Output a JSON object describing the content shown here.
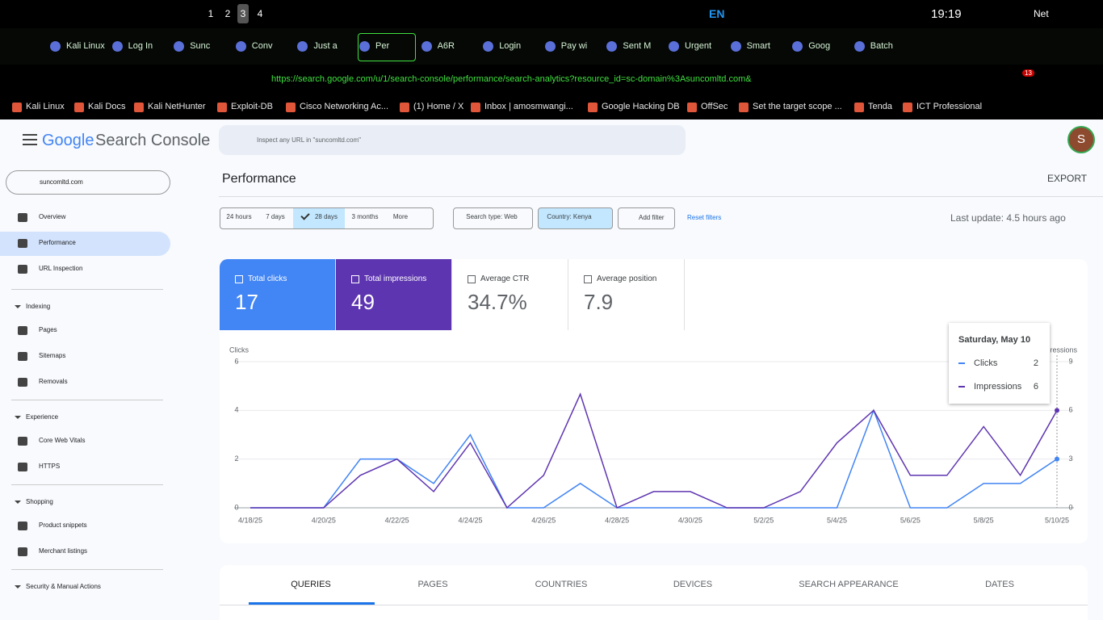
{
  "taskbar": {
    "workspaces": [
      "1",
      "2",
      "3",
      "4"
    ],
    "lang": "EN",
    "time": "19:19",
    "net": "Net"
  },
  "tabs": [
    "Kali Linux",
    "Log In",
    "Sunc",
    "Conv",
    "Just a",
    "Per",
    "A6R",
    "Login",
    "Pay wi",
    "Sent M",
    "Urgent",
    "Smart",
    "Goog",
    "Batch"
  ],
  "url": "https://search.google.com/u/1/search-console/performance/search-analytics?resource_id=sc-domain%3Asuncomltd.com&",
  "extension_badge": "13",
  "bookmarks": [
    "Kali Linux",
    "Kali Docs",
    "Kali NetHunter",
    "Exploit-DB",
    "Cisco Networking Ac...",
    "(1) Home / X",
    "Inbox | amosmwangi...",
    "Google Hacking DB",
    "OffSec",
    "Set the target scope ...",
    "Tenda",
    "ICT Professional"
  ],
  "app": {
    "logo_google": "Google",
    "logo_product": "Search Console",
    "search_placeholder": "Inspect any URL in \"suncomltd.com\"",
    "avatar": "S",
    "property": "suncomltd.com"
  },
  "nav": {
    "top": [
      "Overview",
      "Performance",
      "URL Inspection"
    ],
    "sections": [
      {
        "title": "Indexing",
        "items": [
          "Pages",
          "Sitemaps",
          "Removals"
        ]
      },
      {
        "title": "Experience",
        "items": [
          "Core Web Vitals",
          "HTTPS"
        ]
      },
      {
        "title": "Shopping",
        "items": [
          "Product snippets",
          "Merchant listings"
        ]
      },
      {
        "title": "Security & Manual Actions",
        "items": []
      }
    ]
  },
  "page": {
    "title": "Performance",
    "export": "EXPORT",
    "date_ranges": [
      "24 hours",
      "7 days",
      "28 days",
      "3 months",
      "More"
    ],
    "filters": [
      "Search type: Web",
      "Country: Kenya"
    ],
    "add_filter": "Add filter",
    "reset": "Reset filters",
    "last_update": "Last update: 4.5 hours ago"
  },
  "metrics": [
    {
      "label": "Total clicks",
      "value": "17"
    },
    {
      "label": "Total impressions",
      "value": "49"
    },
    {
      "label": "Average CTR",
      "value": "34.7%"
    },
    {
      "label": "Average position",
      "value": "7.9"
    }
  ],
  "tooltip": {
    "title": "Saturday, May 10"
  },
  "chart_data": {
    "type": "line",
    "y_label": "Clicks",
    "y2_label": "Impressions",
    "categories": [
      "4/18/25",
      null,
      "4/20/25",
      null,
      "4/22/25",
      null,
      "4/24/25",
      null,
      "4/26/25",
      null,
      "4/28/25",
      null,
      "4/30/25",
      null,
      "5/2/25",
      null,
      "5/4/25",
      null,
      "5/6/25",
      null,
      "5/8/25",
      null,
      "5/10/25"
    ],
    "series": [
      {
        "name": "Clicks",
        "color": "#4285f4",
        "values": [
          0,
          0,
          0,
          2,
          2,
          1,
          3,
          0,
          0,
          1,
          0,
          0,
          0,
          0,
          0,
          0,
          0,
          4,
          0,
          0,
          1,
          1,
          2
        ]
      },
      {
        "name": "Impressions",
        "color": "#5e35b1",
        "axis": "y2",
        "values": [
          0,
          0,
          0,
          2,
          3,
          1,
          4,
          0,
          2,
          7,
          0,
          1,
          1,
          0,
          0,
          1,
          4,
          6,
          2,
          2,
          5,
          2,
          6
        ]
      }
    ],
    "ylim": [
      0,
      6
    ],
    "yticks": [
      0,
      2,
      4,
      6
    ],
    "y2lim": [
      0,
      9
    ],
    "y2ticks": [
      0,
      3,
      6,
      9
    ],
    "grid": true
  },
  "result_tabs": [
    "QUERIES",
    "PAGES",
    "COUNTRIES",
    "DEVICES",
    "SEARCH APPEARANCE",
    "DATES"
  ]
}
